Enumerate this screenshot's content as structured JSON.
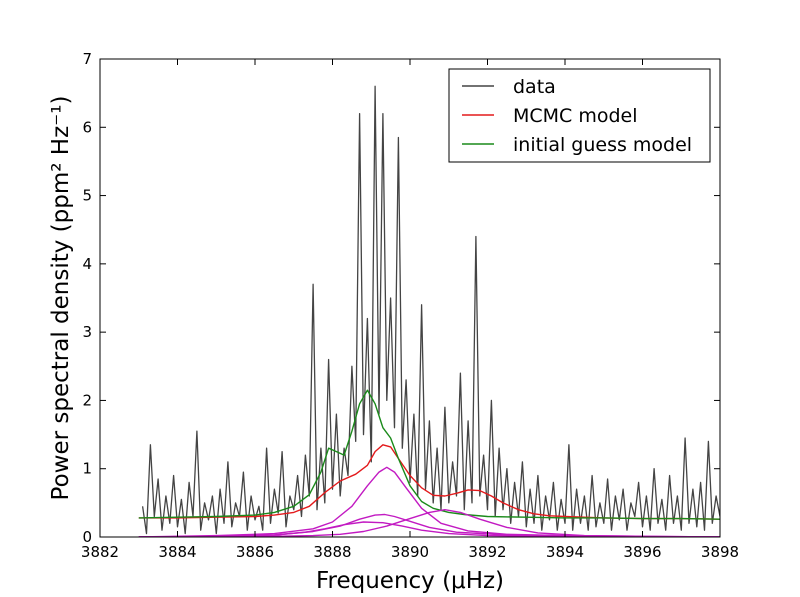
{
  "chart_data": {
    "type": "line",
    "title": "",
    "xlabel": "Frequency (μHz)",
    "ylabel": "Power spectral density (ppm² Hz⁻¹)",
    "xlim": [
      3882,
      3898
    ],
    "ylim": [
      0,
      7
    ],
    "xticks": [
      3882,
      3884,
      3886,
      3888,
      3890,
      3892,
      3894,
      3896,
      3898
    ],
    "yticks": [
      0,
      1,
      2,
      3,
      4,
      5,
      6,
      7
    ],
    "grid": false,
    "legend_position": "top-right",
    "legend": [
      {
        "label": "data",
        "color": "#444444"
      },
      {
        "label": "MCMC model",
        "color": "#e31a1c"
      },
      {
        "label": "initial guess model",
        "color": "#1a8a1a"
      }
    ],
    "series": [
      {
        "name": "data",
        "color": "#444444",
        "x": [
          3883.1,
          3883.2,
          3883.3,
          3883.4,
          3883.5,
          3883.6,
          3883.7,
          3883.8,
          3883.9,
          3884.0,
          3884.1,
          3884.2,
          3884.3,
          3884.4,
          3884.5,
          3884.6,
          3884.7,
          3884.8,
          3884.9,
          3885.0,
          3885.1,
          3885.2,
          3885.3,
          3885.4,
          3885.5,
          3885.6,
          3885.7,
          3885.8,
          3885.9,
          3886.0,
          3886.1,
          3886.2,
          3886.3,
          3886.4,
          3886.5,
          3886.6,
          3886.7,
          3886.8,
          3886.9,
          3887.0,
          3887.1,
          3887.2,
          3887.3,
          3887.4,
          3887.5,
          3887.6,
          3887.7,
          3887.8,
          3887.9,
          3888.0,
          3888.1,
          3888.2,
          3888.3,
          3888.4,
          3888.5,
          3888.6,
          3888.7,
          3888.8,
          3888.9,
          3889.0,
          3889.1,
          3889.2,
          3889.3,
          3889.4,
          3889.5,
          3889.6,
          3889.7,
          3889.8,
          3889.9,
          3890.0,
          3890.1,
          3890.2,
          3890.3,
          3890.4,
          3890.5,
          3890.6,
          3890.7,
          3890.8,
          3890.9,
          3891.0,
          3891.1,
          3891.2,
          3891.3,
          3891.4,
          3891.5,
          3891.6,
          3891.7,
          3891.8,
          3891.9,
          3892.0,
          3892.1,
          3892.2,
          3892.3,
          3892.4,
          3892.5,
          3892.6,
          3892.7,
          3892.8,
          3892.9,
          3893.0,
          3893.1,
          3893.2,
          3893.3,
          3893.4,
          3893.5,
          3893.6,
          3893.7,
          3893.8,
          3893.9,
          3894.0,
          3894.1,
          3894.2,
          3894.3,
          3894.4,
          3894.5,
          3894.6,
          3894.7,
          3894.8,
          3894.9,
          3895.0,
          3895.1,
          3895.2,
          3895.3,
          3895.4,
          3895.5,
          3895.6,
          3895.7,
          3895.8,
          3895.9,
          3896.0,
          3896.1,
          3896.2,
          3896.3,
          3896.4,
          3896.5,
          3896.6,
          3896.7,
          3896.8,
          3896.9,
          3897.0,
          3897.1,
          3897.2,
          3897.3,
          3897.4,
          3897.5,
          3897.6,
          3897.7,
          3897.8,
          3897.9,
          3898.0
        ],
        "y": [
          0.45,
          0.05,
          1.35,
          0.3,
          0.85,
          0.1,
          0.6,
          0.2,
          0.9,
          0.15,
          0.55,
          0.05,
          0.8,
          0.3,
          1.55,
          0.1,
          0.5,
          0.25,
          0.6,
          0.05,
          0.7,
          0.2,
          1.1,
          0.15,
          0.5,
          0.3,
          0.95,
          0.1,
          0.6,
          0.25,
          0.45,
          0.1,
          1.3,
          0.2,
          0.7,
          0.35,
          1.25,
          0.15,
          0.6,
          0.4,
          0.9,
          0.3,
          1.2,
          0.6,
          3.7,
          0.4,
          1.3,
          0.5,
          2.6,
          0.7,
          1.8,
          0.6,
          1.3,
          0.9,
          2.5,
          1.4,
          6.2,
          1.5,
          3.2,
          1.1,
          6.6,
          1.8,
          6.2,
          2.0,
          3.5,
          1.6,
          5.85,
          1.3,
          2.3,
          0.8,
          1.8,
          0.6,
          3.4,
          0.7,
          1.7,
          0.5,
          1.3,
          0.4,
          1.9,
          0.5,
          1.1,
          0.6,
          2.4,
          0.4,
          1.7,
          0.5,
          4.4,
          0.6,
          1.2,
          0.4,
          2.0,
          0.3,
          1.3,
          0.4,
          1.0,
          0.2,
          0.8,
          0.3,
          1.1,
          0.15,
          0.7,
          0.2,
          0.9,
          0.1,
          0.6,
          0.25,
          0.8,
          0.1,
          0.55,
          0.2,
          1.35,
          0.1,
          0.7,
          0.2,
          0.6,
          0.1,
          0.9,
          0.15,
          0.5,
          0.2,
          0.85,
          0.1,
          0.6,
          0.25,
          0.7,
          0.1,
          0.5,
          0.3,
          0.8,
          0.15,
          0.6,
          0.1,
          1.0,
          0.2,
          0.55,
          0.1,
          0.9,
          0.2,
          0.6,
          0.1,
          1.45,
          0.2,
          0.7,
          0.15,
          0.8,
          0.1,
          1.4,
          0.2,
          0.6,
          0.3
        ]
      },
      {
        "name": "MCMC model",
        "color": "#e31a1c",
        "x": [
          3883.0,
          3884.0,
          3885.0,
          3886.0,
          3886.5,
          3887.0,
          3887.4,
          3887.8,
          3888.2,
          3888.6,
          3888.9,
          3889.1,
          3889.3,
          3889.5,
          3889.7,
          3890.0,
          3890.3,
          3890.6,
          3890.9,
          3891.2,
          3891.5,
          3891.8,
          3892.1,
          3892.4,
          3892.8,
          3893.2,
          3893.6,
          3894.0,
          3895.0,
          3896.0,
          3897.0,
          3898.0
        ],
        "y": [
          0.28,
          0.28,
          0.29,
          0.3,
          0.32,
          0.36,
          0.45,
          0.65,
          0.82,
          0.92,
          1.05,
          1.25,
          1.35,
          1.32,
          1.15,
          0.9,
          0.72,
          0.61,
          0.6,
          0.64,
          0.69,
          0.68,
          0.6,
          0.5,
          0.4,
          0.34,
          0.31,
          0.3,
          0.28,
          0.27,
          0.27,
          0.26
        ]
      },
      {
        "name": "initial guess model",
        "color": "#1a8a1a",
        "x": [
          3883.0,
          3884.0,
          3885.0,
          3886.0,
          3886.5,
          3887.0,
          3887.4,
          3887.7,
          3887.9,
          3888.1,
          3888.3,
          3888.5,
          3888.7,
          3888.9,
          3889.1,
          3889.3,
          3889.5,
          3889.7,
          3890.0,
          3890.3,
          3890.6,
          3891.0,
          3891.4,
          3892.0,
          3893.0,
          3894.0,
          3895.0,
          3896.0,
          3897.0,
          3898.0
        ],
        "y": [
          0.28,
          0.29,
          0.3,
          0.32,
          0.36,
          0.45,
          0.62,
          0.95,
          1.3,
          1.25,
          1.2,
          1.55,
          1.95,
          2.15,
          1.95,
          1.6,
          1.45,
          1.15,
          0.75,
          0.52,
          0.42,
          0.36,
          0.33,
          0.3,
          0.29,
          0.28,
          0.28,
          0.27,
          0.27,
          0.26
        ]
      },
      {
        "name": "",
        "color": "#c21ac2",
        "x": [
          3883.0,
          3885.0,
          3886.5,
          3887.5,
          3888.0,
          3888.5,
          3888.9,
          3889.2,
          3889.4,
          3889.6,
          3889.9,
          3890.3,
          3890.8,
          3891.5,
          3892.5,
          3894.0,
          3896.0,
          3898.0
        ],
        "y": [
          0.0,
          0.02,
          0.05,
          0.12,
          0.22,
          0.45,
          0.75,
          0.95,
          1.02,
          0.95,
          0.72,
          0.42,
          0.2,
          0.09,
          0.04,
          0.02,
          0.01,
          0.0
        ]
      },
      {
        "name": "",
        "color": "#c21ac2",
        "x": [
          3883.0,
          3885.0,
          3886.5,
          3887.5,
          3888.2,
          3888.7,
          3889.1,
          3889.35,
          3889.6,
          3890.0,
          3890.5,
          3891.2,
          3892.5,
          3894.0,
          3896.0,
          3898.0
        ],
        "y": [
          0.0,
          0.01,
          0.03,
          0.08,
          0.16,
          0.26,
          0.32,
          0.33,
          0.3,
          0.23,
          0.14,
          0.07,
          0.03,
          0.01,
          0.0,
          0.0
        ]
      },
      {
        "name": "",
        "color": "#c21ac2",
        "x": [
          3883.0,
          3885.0,
          3886.5,
          3887.5,
          3888.2,
          3888.8,
          3889.4,
          3890.0,
          3890.5,
          3890.9,
          3891.3,
          3891.8,
          3892.5,
          3893.3,
          3894.5,
          3896.0,
          3898.0
        ],
        "y": [
          0.0,
          0.0,
          0.01,
          0.02,
          0.04,
          0.08,
          0.16,
          0.27,
          0.36,
          0.4,
          0.36,
          0.26,
          0.14,
          0.06,
          0.02,
          0.01,
          0.0
        ]
      },
      {
        "name": "",
        "color": "#c21ac2",
        "x": [
          3883.0,
          3885.0,
          3886.5,
          3887.3,
          3887.8,
          3888.3,
          3888.8,
          3889.3,
          3889.8,
          3890.3,
          3891.0,
          3892.0,
          3894.0,
          3896.0,
          3898.0
        ],
        "y": [
          0.0,
          0.01,
          0.03,
          0.07,
          0.12,
          0.18,
          0.22,
          0.21,
          0.16,
          0.1,
          0.05,
          0.02,
          0.01,
          0.0,
          0.0
        ]
      }
    ]
  }
}
